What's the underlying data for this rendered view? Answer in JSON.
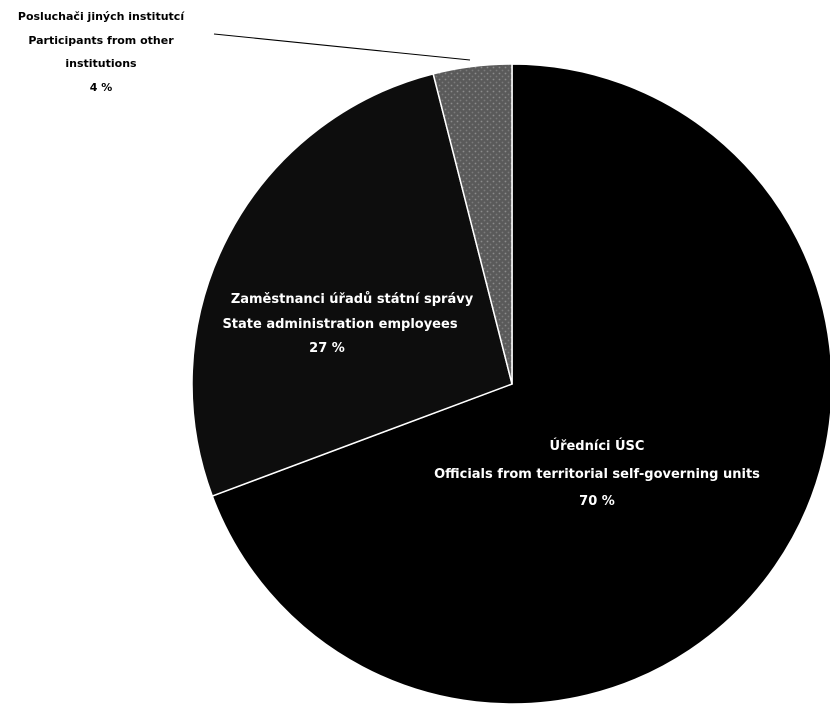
{
  "chart_data": {
    "type": "pie",
    "slices": [
      {
        "label_cz": "Úředníci ÚSC",
        "label_en": "Officials from territorial self-governing units",
        "value": 70,
        "pct_label": "70 %",
        "color": "#000000"
      },
      {
        "label_cz": "Zaměstnanci úřadů státní správy",
        "label_en": "State administration employees",
        "value": 27,
        "pct_label": "27 %",
        "color": "#0d0d0d"
      },
      {
        "label_cz": "Posluchači jiných institutcí",
        "label_en_line1": "Participants from other",
        "label_en_line2": "institutions",
        "value": 4,
        "pct_label": "4 %",
        "color": "#5a5a5a"
      }
    ],
    "legend": "none",
    "labels": "on-slices"
  }
}
